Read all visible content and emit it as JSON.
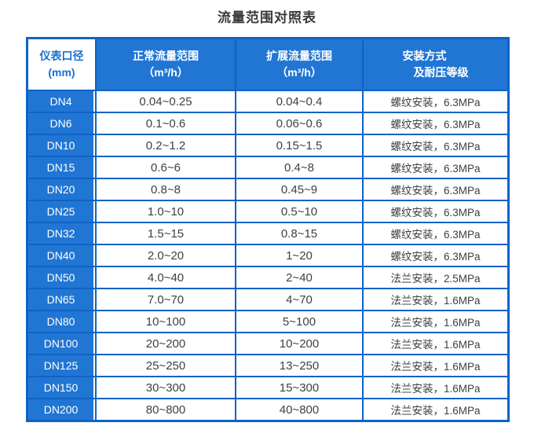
{
  "title": "流量范围对照表",
  "colors": {
    "header_blue": "#2176d3",
    "grid_blue": "#0f63c6",
    "header_first_cell_bg": "#ffffff",
    "header_first_cell_text": "#1a6fd0",
    "cell_text": "#404040",
    "title_text": "#3a3a3a"
  },
  "chart_data": {
    "type": "table",
    "title": "流量范围对照表",
    "columns": [
      {
        "line1": "仪表口径",
        "line2": "(mm)"
      },
      {
        "line1": "正常流量范围",
        "line2": "（m³/h）"
      },
      {
        "line1": "扩展流量范围",
        "line2": "（m³/h）"
      },
      {
        "line1": "安装方式",
        "line2": "及耐压等级"
      }
    ],
    "rows": [
      [
        "DN4",
        "0.04~0.25",
        "0.04~0.4",
        "螺纹安装，6.3MPa"
      ],
      [
        "DN6",
        "0.1~0.6",
        "0.06~0.6",
        "螺纹安装，6.3MPa"
      ],
      [
        "DN10",
        "0.2~1.2",
        "0.15~1.5",
        "螺纹安装，6.3MPa"
      ],
      [
        "DN15",
        "0.6~6",
        "0.4~8",
        "螺纹安装，6.3MPa"
      ],
      [
        "DN20",
        "0.8~8",
        "0.45~9",
        "螺纹安装，6.3MPa"
      ],
      [
        "DN25",
        "1.0~10",
        "0.5~10",
        "螺纹安装，6.3MPa"
      ],
      [
        "DN32",
        "1.5~15",
        "0.8~15",
        "螺纹安装，6.3MPa"
      ],
      [
        "DN40",
        "2.0~20",
        "1~20",
        "螺纹安装，6.3MPa"
      ],
      [
        "DN50",
        "4.0~40",
        "2~40",
        "法兰安装，2.5MPa"
      ],
      [
        "DN65",
        "7.0~70",
        "4~70",
        "法兰安装，1.6MPa"
      ],
      [
        "DN80",
        "10~100",
        "5~100",
        "法兰安装，1.6MPa"
      ],
      [
        "DN100",
        "20~200",
        "10~200",
        "法兰安装，1.6MPa"
      ],
      [
        "DN125",
        "25~250",
        "13~250",
        "法兰安装，1.6MPa"
      ],
      [
        "DN150",
        "30~300",
        "15~300",
        "法兰安装，1.6MPa"
      ],
      [
        "DN200",
        "80~800",
        "40~800",
        "法兰安装，1.6MPa"
      ]
    ]
  }
}
